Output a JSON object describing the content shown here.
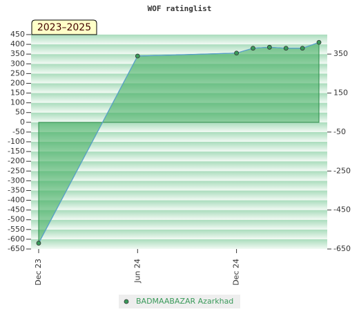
{
  "chart_data": {
    "type": "area",
    "title": "WOF ratinglist",
    "annotation": "2023–2025",
    "x": [
      "Dec 23",
      "Jun 24",
      "Dec 24",
      "Jan 25",
      "Feb 25",
      "Mar 25",
      "Apr 25",
      "May 25"
    ],
    "xticks": [
      "Dec 23",
      "Jun 24",
      "Dec 24"
    ],
    "series": [
      {
        "name": "BADMAABAZAR Azarkhad",
        "color": "#5aa0d0",
        "values": [
          -620,
          340,
          355,
          380,
          385,
          380,
          380,
          410
        ]
      }
    ],
    "ylim": [
      -650,
      450
    ],
    "yticks": [
      -650,
      -600,
      -550,
      -500,
      -450,
      -400,
      -350,
      -300,
      -250,
      -200,
      -150,
      -100,
      -50,
      0,
      50,
      100,
      150,
      200,
      250,
      300,
      350,
      400,
      450
    ],
    "y2lim": [
      -650,
      450
    ],
    "y2ticks": [
      -650,
      -450,
      -250,
      -50,
      150,
      350
    ],
    "grid": true
  }
}
